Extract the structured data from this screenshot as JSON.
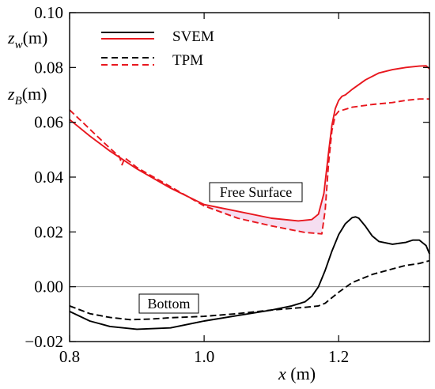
{
  "chart_data": {
    "type": "line",
    "xlabel": {
      "var": "x",
      "unit": " (m)"
    },
    "ylabels": [
      {
        "var": "z",
        "sub": "w",
        "unit": "(m)"
      },
      {
        "var": "z",
        "sub": "B",
        "unit": "(m)"
      }
    ],
    "xlim": [
      0.8,
      1.335
    ],
    "ylim": [
      -0.02,
      0.1
    ],
    "xticks": [
      0.8,
      1.0,
      1.2
    ],
    "xtick_labels": [
      "0.8",
      "1.0",
      "1.2"
    ],
    "yticks": [
      -0.02,
      0.0,
      0.02,
      0.04,
      0.06,
      0.08,
      0.1
    ],
    "ytick_labels": [
      "−0.02",
      "0.00",
      "0.02",
      "0.04",
      "0.06",
      "0.08",
      "0.10"
    ],
    "reference_line_y": 0.0,
    "colors": {
      "svem_surface": "#e8171e",
      "tpm_surface": "#e8171e",
      "svem_bottom": "#000000",
      "tpm_bottom": "#000000",
      "shade": "#f3d6ee"
    },
    "legend": [
      {
        "label": "SVEM",
        "colors": [
          "#000000",
          "#e8171e"
        ],
        "style": "solid"
      },
      {
        "label": "TPM",
        "colors": [
          "#000000",
          "#e8171e"
        ],
        "style": "dashed"
      }
    ],
    "annotations": [
      {
        "text": "Free Surface",
        "x": 1.138,
        "y": 0.0335
      },
      {
        "text": "Bottom",
        "x": 0.85,
        "y": -0.0062
      }
    ],
    "series": [
      {
        "name": "SVEM",
        "group": "free_surface",
        "color": "#e8171e",
        "style": "solid",
        "x": [
          0.8,
          0.83,
          0.86,
          0.9,
          0.95,
          1.0,
          1.05,
          1.1,
          1.14,
          1.16,
          1.17,
          1.178,
          1.185,
          1.19,
          1.195,
          1.2,
          1.205,
          1.21,
          1.22,
          1.24,
          1.26,
          1.28,
          1.3,
          1.32,
          1.33,
          1.335
        ],
        "y": [
          0.061,
          0.055,
          0.0495,
          0.043,
          0.036,
          0.03,
          0.0275,
          0.025,
          0.024,
          0.0245,
          0.0265,
          0.034,
          0.049,
          0.059,
          0.065,
          0.068,
          0.0695,
          0.07,
          0.072,
          0.0755,
          0.078,
          0.0792,
          0.08,
          0.0805,
          0.0806,
          0.0795
        ]
      },
      {
        "name": "TPM",
        "group": "free_surface",
        "color": "#e8171e",
        "style": "dashed",
        "x": [
          0.8,
          0.83,
          0.86,
          0.874,
          0.878,
          0.882,
          0.89,
          0.9,
          0.95,
          1.0,
          1.05,
          1.1,
          1.15,
          1.175,
          1.18,
          1.185,
          1.19,
          1.195,
          1.2,
          1.22,
          1.25,
          1.28,
          1.3,
          1.32,
          1.335
        ],
        "y": [
          0.0645,
          0.0575,
          0.0505,
          0.0475,
          0.0445,
          0.047,
          0.0455,
          0.0435,
          0.0365,
          0.0295,
          0.025,
          0.0222,
          0.0198,
          0.0193,
          0.028,
          0.045,
          0.057,
          0.0625,
          0.064,
          0.0655,
          0.0665,
          0.0672,
          0.068,
          0.0685,
          0.0685
        ]
      },
      {
        "name": "SVEM",
        "group": "bottom",
        "color": "#000000",
        "style": "solid",
        "x": [
          0.8,
          0.83,
          0.86,
          0.9,
          0.95,
          1.0,
          1.05,
          1.1,
          1.13,
          1.15,
          1.16,
          1.17,
          1.18,
          1.19,
          1.2,
          1.21,
          1.22,
          1.225,
          1.23,
          1.24,
          1.25,
          1.26,
          1.28,
          1.3,
          1.31,
          1.32,
          1.33,
          1.335
        ],
        "y": [
          -0.009,
          -0.0125,
          -0.0145,
          -0.0155,
          -0.015,
          -0.0125,
          -0.0105,
          -0.0085,
          -0.007,
          -0.0055,
          -0.0035,
          0.0,
          0.006,
          0.013,
          0.019,
          0.023,
          0.0252,
          0.0255,
          0.025,
          0.022,
          0.0185,
          0.0165,
          0.0155,
          0.0162,
          0.017,
          0.017,
          0.015,
          0.012
        ]
      },
      {
        "name": "TPM",
        "group": "bottom",
        "color": "#000000",
        "style": "dashed",
        "x": [
          0.8,
          0.83,
          0.86,
          0.89,
          0.92,
          0.95,
          1.0,
          1.05,
          1.1,
          1.15,
          1.17,
          1.18,
          1.2,
          1.22,
          1.25,
          1.28,
          1.3,
          1.32,
          1.335
        ],
        "y": [
          -0.007,
          -0.0098,
          -0.0112,
          -0.012,
          -0.0118,
          -0.0113,
          -0.0108,
          -0.0098,
          -0.0085,
          -0.0075,
          -0.007,
          -0.006,
          -0.002,
          0.0015,
          0.0045,
          0.0065,
          0.0078,
          0.0085,
          0.0095
        ]
      }
    ]
  }
}
